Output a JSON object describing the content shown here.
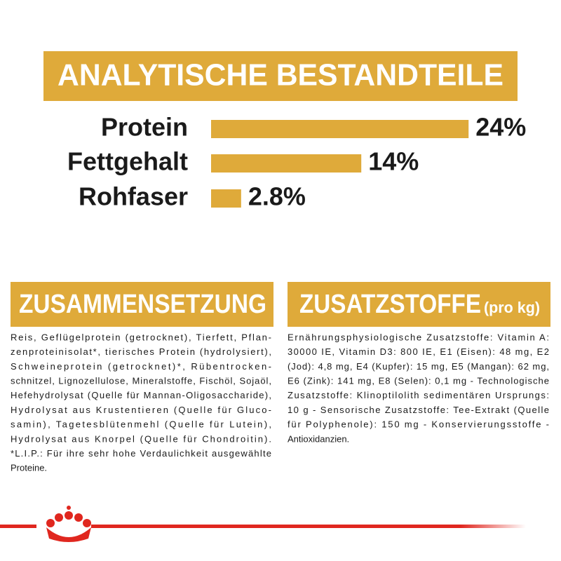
{
  "header": {
    "title": "ANALYTISCHE BESTANDTEILE"
  },
  "chart_data": {
    "type": "bar",
    "orientation": "horizontal",
    "categories": [
      "Protein",
      "Fettgehalt",
      "Rohfaser"
    ],
    "values": [
      24,
      14,
      2.8
    ],
    "value_labels": [
      "24%",
      "14%",
      "2.8%"
    ],
    "color": "#dfaa3a"
  },
  "composition": {
    "title": "ZUSAMMENSETZUNG",
    "lines": [
      "Reis, Geflügelprotein (getrocknet), Tierfett, Pflan-",
      "zenproteinisolat*, tierisches Protein (hydrolysiert),",
      "Schweineprotein (getrocknet)*, Rübentrocken-",
      "schnitzel, Lignozellulose, Mineralstoffe, Fischöl, Sojaöl,",
      "Hefehydrolysat (Quelle für Mannan-Oligosaccharide),",
      "Hydrolysat aus Krustentieren (Quelle für Gluco-",
      "samin), Tagetesblütenmehl (Quelle für Lutein),",
      "Hydrolysat aus Knorpel (Quelle für Chondroitin).",
      "*L.I.P.: Für ihre sehr hohe Verdaulichkeit ausgewählte",
      "Proteine."
    ]
  },
  "additives": {
    "title": "ZUSATZSTOFFE",
    "title_suffix": "(pro kg)",
    "lines": [
      "Ernährungsphysiologische Zusatzstoffe: Vitamin A:",
      "30000 IE, Vitamin D3: 800 IE, E1 (Eisen): 48 mg, E2",
      "(Jod): 4,8 mg, E4 (Kupfer): 15 mg, E5 (Mangan): 62 mg,",
      "E6 (Zink): 141 mg, E8 (Selen): 0,1 mg - Technologische",
      "Zusatzstoffe: Klinoptilolith sedimentären Ursprungs:",
      "10 g - Sensorische Zusatzstoffe: Tee-Extrakt (Quelle",
      "für Polyphenole): 150 mg - Konservierungsstoffe -",
      "Antioxidanzien."
    ]
  }
}
